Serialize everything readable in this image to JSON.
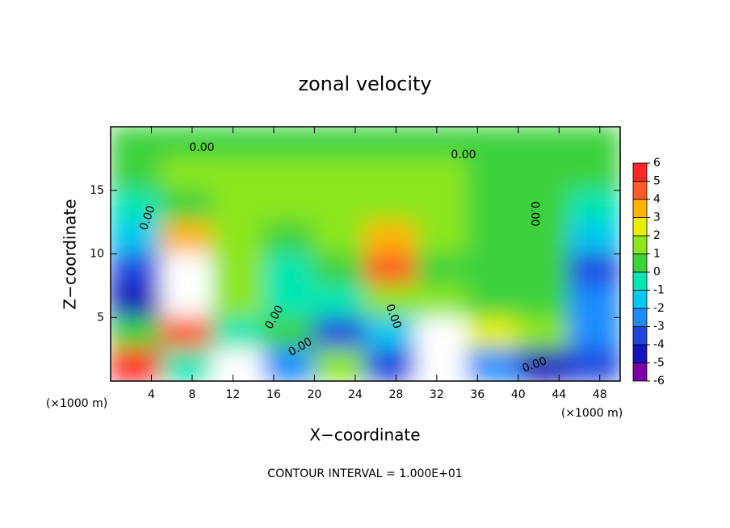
{
  "chart_data": {
    "type": "contour",
    "title": "zonal velocity",
    "x_label": "X−coordinate",
    "y_label": "Z−coordinate",
    "x_unit": "(×1000 m)",
    "y_unit": "(×1000 m)",
    "footer": "CONTOUR INTERVAL = 1.000E+01",
    "contour_labels": [
      "0.00",
      "0.00",
      "0.00",
      "0.00",
      "0.00",
      "0.00",
      "0.00",
      "0.00"
    ],
    "xlim": [
      0,
      50
    ],
    "ylim": [
      0,
      20
    ],
    "xticks": [
      4,
      8,
      12,
      16,
      20,
      24,
      28,
      32,
      36,
      40,
      44,
      48
    ],
    "yticks": [
      5,
      10,
      15
    ],
    "x": [
      2.5,
      7.5,
      12.5,
      17.5,
      22.5,
      27.5,
      32.5,
      37.5,
      42.5,
      47.5
    ],
    "y": [
      18.75,
      16.25,
      13.75,
      11.25,
      8.75,
      6.25,
      3.75,
      1.25
    ],
    "z": [
      [
        0.5,
        0.5,
        0.5,
        0.5,
        0.5,
        0.5,
        0.5,
        0.5,
        0.5,
        0.5
      ],
      [
        0.5,
        1,
        1,
        1,
        1,
        1,
        1,
        0.5,
        0.5,
        0
      ],
      [
        -1,
        0.5,
        1,
        1,
        1,
        1.5,
        1,
        0.5,
        0.5,
        -1
      ],
      [
        -2,
        3,
        1,
        0.5,
        1,
        3,
        1,
        0.5,
        0,
        -2
      ],
      [
        -4,
        6,
        1,
        -0.5,
        0.5,
        4,
        0.5,
        0,
        0.5,
        -4
      ],
      [
        -5,
        6,
        1,
        -1,
        -1,
        1,
        1,
        0.5,
        0,
        -3
      ],
      [
        0,
        4,
        -1,
        0,
        -4,
        -2,
        6,
        2,
        1,
        -3
      ],
      [
        5,
        -1,
        6,
        -3,
        1,
        -4,
        6,
        -3,
        -5,
        -4
      ]
    ],
    "colorbar": {
      "ticks": [
        -6,
        -5,
        -4,
        -3,
        -2,
        -1,
        0,
        1,
        2,
        3,
        4,
        5,
        6
      ],
      "colors": [
        "#7a00a8",
        "#1414b8",
        "#2046e0",
        "#1e8cff",
        "#00c8f0",
        "#00e6b4",
        "#3cd23c",
        "#8ce61e",
        "#e6f000",
        "#ffb400",
        "#ff5a28",
        "#ff2828"
      ],
      "over_color": "#ffffff"
    }
  }
}
